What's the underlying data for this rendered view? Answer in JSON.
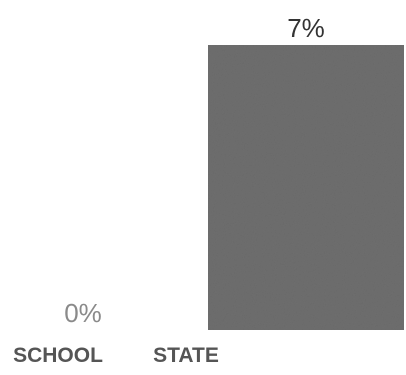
{
  "chart_data": {
    "type": "bar",
    "categories": [
      "SCHOOL",
      "STATE"
    ],
    "values": [
      0,
      7
    ],
    "value_labels": [
      "0%",
      "7%"
    ],
    "title": "",
    "xlabel": "",
    "ylabel": "",
    "ylim": [
      0,
      7
    ],
    "grid": false,
    "legend": "none",
    "bar_color": "#6e6e6e"
  }
}
